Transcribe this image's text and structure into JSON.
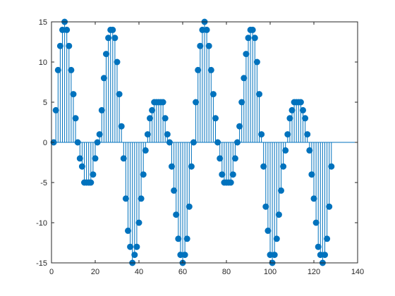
{
  "chart_data": {
    "type": "stem",
    "title": "",
    "xlabel": "",
    "ylabel": "",
    "xlim": [
      0,
      140
    ],
    "ylim": [
      -15,
      15
    ],
    "xticks": [
      0,
      20,
      40,
      60,
      80,
      100,
      120,
      140
    ],
    "yticks": [
      -15,
      -10,
      -5,
      0,
      5,
      10,
      15
    ],
    "xtick_labels": [
      "0",
      "20",
      "40",
      "60",
      "80",
      "100",
      "120",
      "140"
    ],
    "ytick_labels": [
      "-15",
      "-10",
      "-5",
      "0",
      "5",
      "10",
      "15"
    ],
    "grid": false,
    "box": true,
    "baseline": 0,
    "color": "#0072BD",
    "x_start": 1,
    "series": [
      {
        "values": [
          0,
          4,
          9,
          12,
          14,
          15,
          14,
          12,
          9,
          6,
          3,
          0,
          -2,
          -3,
          -5,
          -5,
          -5,
          -5,
          -4,
          -2,
          0,
          1,
          4,
          8,
          11,
          13,
          14,
          14,
          13,
          10,
          6,
          2,
          -2,
          -7,
          -11,
          -13,
          -15,
          -14,
          -13,
          -10,
          -7,
          -4,
          -1,
          1,
          3,
          4,
          5,
          5,
          5,
          5,
          5,
          3,
          1,
          0,
          -3,
          -6,
          -9,
          -12,
          -14,
          -15,
          -14,
          -12,
          -8,
          -3,
          0,
          5,
          9,
          12,
          14,
          15,
          14,
          12,
          9,
          6,
          3,
          0,
          -2,
          -4,
          -5,
          -5,
          -5,
          -5,
          -4,
          -2,
          0,
          2,
          5,
          8,
          11,
          13,
          14,
          14,
          13,
          10,
          6,
          1,
          -3,
          -8,
          -11,
          -14,
          -15,
          -14,
          -12,
          -9,
          -6,
          -3,
          -1,
          1,
          3,
          4,
          5,
          5,
          5,
          5,
          4,
          3,
          1,
          -1,
          -4,
          -7,
          -10,
          -13,
          -14,
          -15,
          -14,
          -12,
          -8,
          -3
        ]
      }
    ]
  }
}
